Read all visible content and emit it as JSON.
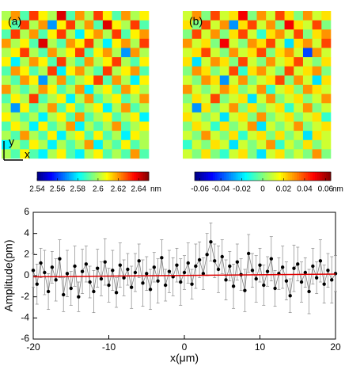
{
  "chart_data": [
    {
      "type": "heatmap",
      "label": "(a)",
      "colormap": "jet",
      "unit": "nm",
      "clim": [
        2.54,
        2.65
      ],
      "cticks": [
        2.54,
        2.56,
        2.58,
        2.6,
        2.62,
        2.64
      ],
      "axis_labels": {
        "x": "x",
        "y": "y"
      },
      "values": [
        [
          2.6,
          2.62,
          2.59,
          2.63,
          2.61,
          2.6,
          2.64,
          2.59,
          2.62,
          2.6,
          2.63,
          2.61,
          2.59,
          2.62,
          2.6,
          2.61
        ],
        [
          2.61,
          2.59,
          2.63,
          2.6,
          2.62,
          2.57,
          2.61,
          2.63,
          2.6,
          2.62,
          2.59,
          2.64,
          2.61,
          2.6,
          2.63,
          2.59
        ],
        [
          2.59,
          2.63,
          2.6,
          2.62,
          2.59,
          2.61,
          2.63,
          2.6,
          2.58,
          2.61,
          2.62,
          2.6,
          2.63,
          2.59,
          2.61,
          2.62
        ],
        [
          2.62,
          2.6,
          2.61,
          2.59,
          2.64,
          2.6,
          2.59,
          2.62,
          2.61,
          2.63,
          2.6,
          2.58,
          2.61,
          2.62,
          2.6,
          2.63
        ],
        [
          2.6,
          2.61,
          2.63,
          2.6,
          2.59,
          2.62,
          2.6,
          2.61,
          2.63,
          2.59,
          2.61,
          2.62,
          2.6,
          2.57,
          2.62,
          2.6
        ],
        [
          2.61,
          2.58,
          2.6,
          2.62,
          2.61,
          2.59,
          2.63,
          2.6,
          2.59,
          2.62,
          2.6,
          2.61,
          2.63,
          2.6,
          2.59,
          2.61
        ],
        [
          2.59,
          2.62,
          2.61,
          2.59,
          2.6,
          2.63,
          2.58,
          2.61,
          2.62,
          2.6,
          2.59,
          2.63,
          2.6,
          2.61,
          2.62,
          2.59
        ],
        [
          2.6,
          2.59,
          2.62,
          2.61,
          2.57,
          2.6,
          2.62,
          2.59,
          2.6,
          2.61,
          2.63,
          2.59,
          2.62,
          2.6,
          2.58,
          2.61
        ],
        [
          2.62,
          2.6,
          2.59,
          2.6,
          2.62,
          2.61,
          2.59,
          2.6,
          2.62,
          2.58,
          2.6,
          2.61,
          2.59,
          2.62,
          2.61,
          2.6
        ],
        [
          2.59,
          2.61,
          2.6,
          2.63,
          2.59,
          2.6,
          2.61,
          2.58,
          2.6,
          2.62,
          2.59,
          2.6,
          2.61,
          2.59,
          2.6,
          2.62
        ],
        [
          2.6,
          2.57,
          2.61,
          2.59,
          2.6,
          2.62,
          2.59,
          2.61,
          2.59,
          2.6,
          2.61,
          2.58,
          2.6,
          2.62,
          2.59,
          2.6
        ],
        [
          2.61,
          2.6,
          2.59,
          2.6,
          2.58,
          2.6,
          2.61,
          2.59,
          2.62,
          2.59,
          2.6,
          2.61,
          2.59,
          2.6,
          2.61,
          2.58
        ],
        [
          2.59,
          2.61,
          2.6,
          2.58,
          2.61,
          2.59,
          2.6,
          2.62,
          2.58,
          2.6,
          2.59,
          2.6,
          2.62,
          2.59,
          2.6,
          2.61
        ],
        [
          2.6,
          2.59,
          2.62,
          2.6,
          2.59,
          2.61,
          2.58,
          2.6,
          2.61,
          2.59,
          2.61,
          2.59,
          2.6,
          2.58,
          2.61,
          2.6
        ],
        [
          2.58,
          2.6,
          2.59,
          2.61,
          2.6,
          2.58,
          2.6,
          2.59,
          2.6,
          2.62,
          2.58,
          2.6,
          2.59,
          2.61,
          2.59,
          2.6
        ],
        [
          2.6,
          2.59,
          2.61,
          2.59,
          2.58,
          2.6,
          2.61,
          2.59,
          2.58,
          2.6,
          2.61,
          2.59,
          2.6,
          2.59,
          2.62,
          2.59
        ]
      ]
    },
    {
      "type": "heatmap",
      "label": "(b)",
      "colormap": "jet",
      "unit": "nm",
      "clim": [
        -0.065,
        0.065
      ],
      "cticks": [
        -0.06,
        -0.04,
        -0.02,
        0,
        0.02,
        0.04,
        0.06
      ],
      "values": [
        [
          0.01,
          0.03,
          0.0,
          0.04,
          0.01,
          0.02,
          0.05,
          0.0,
          0.03,
          0.01,
          0.04,
          0.02,
          0.0,
          0.03,
          0.01,
          0.02
        ],
        [
          0.02,
          0.0,
          0.04,
          0.01,
          0.03,
          -0.03,
          0.02,
          0.04,
          0.01,
          0.03,
          0.0,
          0.05,
          0.02,
          0.01,
          0.04,
          0.0
        ],
        [
          0.0,
          0.04,
          0.01,
          0.03,
          0.0,
          0.02,
          0.04,
          0.01,
          -0.01,
          0.02,
          0.03,
          0.01,
          0.04,
          0.0,
          0.02,
          0.03
        ],
        [
          0.03,
          0.01,
          0.02,
          0.0,
          0.05,
          0.01,
          0.0,
          0.03,
          0.02,
          0.04,
          0.01,
          -0.02,
          0.02,
          0.03,
          0.01,
          0.04
        ],
        [
          0.01,
          0.02,
          0.04,
          0.01,
          0.0,
          0.03,
          0.01,
          0.02,
          0.04,
          0.0,
          0.02,
          0.03,
          0.01,
          -0.04,
          0.03,
          0.01
        ],
        [
          0.02,
          -0.02,
          0.01,
          0.03,
          0.02,
          0.0,
          0.04,
          0.01,
          0.0,
          0.03,
          0.01,
          0.02,
          0.04,
          0.01,
          0.0,
          0.02
        ],
        [
          0.0,
          0.03,
          0.02,
          0.0,
          0.01,
          0.04,
          -0.01,
          0.02,
          0.03,
          0.01,
          0.0,
          0.04,
          0.01,
          0.02,
          0.03,
          0.0
        ],
        [
          0.01,
          0.0,
          0.03,
          0.02,
          -0.03,
          0.01,
          0.03,
          0.0,
          0.01,
          0.02,
          0.04,
          0.0,
          0.03,
          0.01,
          -0.02,
          0.02
        ],
        [
          0.03,
          0.01,
          0.0,
          0.01,
          0.03,
          0.02,
          0.0,
          0.01,
          0.03,
          -0.01,
          0.01,
          0.02,
          0.0,
          0.03,
          0.02,
          0.01
        ],
        [
          0.0,
          0.02,
          0.01,
          0.04,
          0.0,
          0.01,
          0.02,
          -0.02,
          0.01,
          0.03,
          0.0,
          0.01,
          0.02,
          0.0,
          0.01,
          0.03
        ],
        [
          0.01,
          -0.03,
          0.02,
          0.0,
          0.01,
          0.03,
          0.0,
          0.02,
          0.0,
          0.01,
          0.02,
          -0.01,
          0.01,
          0.03,
          0.0,
          0.01
        ],
        [
          0.02,
          0.01,
          0.0,
          0.01,
          -0.02,
          0.01,
          0.02,
          0.0,
          0.03,
          0.0,
          0.01,
          0.02,
          0.0,
          0.01,
          0.02,
          -0.01
        ],
        [
          0.0,
          0.02,
          0.01,
          -0.01,
          0.02,
          0.0,
          0.01,
          0.03,
          -0.02,
          0.01,
          0.0,
          0.01,
          0.03,
          0.0,
          0.01,
          0.02
        ],
        [
          0.01,
          0.0,
          0.03,
          0.01,
          0.0,
          0.02,
          -0.01,
          0.01,
          0.02,
          0.0,
          0.02,
          0.0,
          0.01,
          -0.02,
          0.02,
          0.01
        ],
        [
          -0.01,
          0.01,
          0.0,
          0.02,
          0.01,
          -0.02,
          0.01,
          0.0,
          0.01,
          0.03,
          -0.01,
          0.01,
          0.0,
          0.02,
          0.0,
          0.01
        ],
        [
          0.01,
          0.0,
          0.02,
          0.0,
          -0.01,
          0.01,
          0.02,
          0.0,
          -0.02,
          0.01,
          0.02,
          0.0,
          0.01,
          0.0,
          0.03,
          0.0
        ]
      ]
    },
    {
      "type": "errorbar",
      "xlabel": "x(μm)",
      "ylabel": "Amplitude(pm)",
      "xlim": [
        -20,
        20
      ],
      "ylim": [
        -6,
        6
      ],
      "xticks": [
        -20,
        -10,
        0,
        10,
        20
      ],
      "yticks": [
        -6,
        -4,
        -2,
        0,
        2,
        4,
        6
      ],
      "x": [
        -20,
        -19.5,
        -19,
        -18.5,
        -18,
        -17.5,
        -17,
        -16.5,
        -16,
        -15.5,
        -15,
        -14.5,
        -14,
        -13.5,
        -13,
        -12.5,
        -12,
        -11.5,
        -11,
        -10.5,
        -10,
        -9.5,
        -9,
        -8.5,
        -8,
        -7.5,
        -7,
        -6.5,
        -6,
        -5.5,
        -5,
        -4.5,
        -4,
        -3.5,
        -3,
        -2.5,
        -2,
        -1.5,
        -1,
        -0.5,
        0,
        0.5,
        1,
        1.5,
        2,
        2.5,
        3,
        3.5,
        4,
        4.5,
        5,
        5.5,
        6,
        6.5,
        7,
        7.5,
        8,
        8.5,
        9,
        9.5,
        10,
        10.5,
        11,
        11.5,
        12,
        12.5,
        13,
        13.5,
        14,
        14.5,
        15,
        15.5,
        16,
        16.5,
        17,
        17.5,
        18,
        18.5,
        19,
        19.5,
        20
      ],
      "series": [
        {
          "color": "#000000",
          "line_color": "#808080",
          "values": [
            0.5,
            -0.8,
            1.2,
            0.3,
            -1.5,
            0.8,
            -0.4,
            1.6,
            -1.8,
            0.2,
            -1.2,
            0.9,
            -2.0,
            0.4,
            1.1,
            -0.6,
            -1.5,
            0.7,
            -0.3,
            1.3,
            -0.9,
            0.5,
            -1.6,
            1.0,
            -0.2,
            0.6,
            -1.1,
            0.3,
            1.4,
            -0.7,
            0.2,
            -1.3,
            0.8,
            -0.5,
            1.7,
            -0.9,
            0.4,
            -0.1,
            1.0,
            -0.6,
            0.3,
            1.2,
            -0.8,
            0.9,
            1.5,
            0.2,
            2.0,
            3.2,
            1.4,
            0.6,
            1.8,
            -0.4,
            0.9,
            -1.0,
            1.3,
            0.1,
            -1.4,
            2.1,
            0.5,
            -0.3,
            1.0,
            -0.9,
            0.4,
            1.6,
            -1.2,
            0.2,
            0.8,
            -0.5,
            -1.9,
            0.7,
            1.1,
            -0.6,
            0.3,
            -1.5,
            0.9,
            -0.2,
            1.4,
            -0.8,
            0.5,
            -0.4,
            0.2
          ],
          "errors": [
            1.6,
            1.9,
            1.4,
            2.1,
            1.7,
            1.5,
            2.0,
            1.8,
            1.6,
            2.2,
            1.6,
            1.9,
            1.4,
            2.1,
            1.7,
            1.5,
            2.0,
            1.8,
            1.6,
            2.2,
            1.6,
            1.9,
            1.4,
            2.1,
            1.7,
            1.5,
            2.0,
            1.8,
            1.6,
            2.2,
            1.6,
            1.9,
            1.4,
            2.1,
            1.7,
            1.5,
            2.0,
            1.8,
            1.6,
            2.2,
            1.6,
            1.9,
            1.4,
            2.1,
            1.7,
            1.5,
            2.0,
            1.8,
            1.6,
            2.2,
            1.6,
            1.9,
            1.4,
            2.1,
            1.7,
            1.5,
            2.0,
            1.8,
            1.6,
            2.2,
            1.6,
            1.9,
            1.4,
            2.1,
            1.7,
            1.5,
            2.0,
            1.8,
            1.6,
            2.2,
            1.6,
            1.9,
            1.4,
            2.1,
            1.7,
            1.5,
            2.0,
            1.8,
            1.6,
            2.2,
            1.7
          ]
        }
      ],
      "fit": {
        "color": "#e00000",
        "x": [
          -20,
          20
        ],
        "values": [
          -0.1,
          0.15
        ]
      }
    }
  ]
}
